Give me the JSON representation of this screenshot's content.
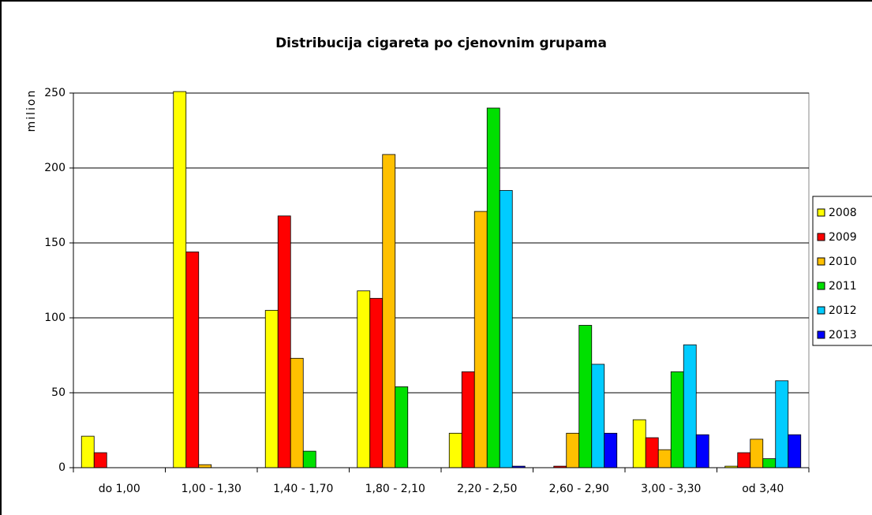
{
  "chart_data": {
    "type": "bar",
    "title": "Distribucija cigareta po cjenovnim grupama",
    "y_label": "milion",
    "categories": [
      "do 1,00",
      "1,00 - 1,30",
      "1,40 - 1,70",
      "1,80 - 2,10",
      "2,20 - 2,50",
      "2,60 - 2,90",
      "3,00 - 3,30",
      "od 3,40"
    ],
    "series": [
      {
        "name": "2008",
        "color": "#ffff00",
        "values": [
          21,
          251,
          105,
          118,
          23,
          0,
          32,
          1
        ]
      },
      {
        "name": "2009",
        "color": "#ff0000",
        "values": [
          10,
          144,
          168,
          113,
          64,
          1,
          20,
          10
        ]
      },
      {
        "name": "2010",
        "color": "#ffc000",
        "values": [
          0,
          2,
          73,
          209,
          171,
          23,
          12,
          19
        ]
      },
      {
        "name": "2011",
        "color": "#00e000",
        "values": [
          0,
          0,
          11,
          54,
          240,
          95,
          64,
          6
        ]
      },
      {
        "name": "2012",
        "color": "#00ccff",
        "values": [
          0,
          0,
          0,
          0,
          185,
          69,
          82,
          58
        ]
      },
      {
        "name": "2013",
        "color": "#0000ff",
        "values": [
          0,
          0,
          0,
          0,
          1,
          23,
          22,
          22
        ]
      }
    ],
    "ylim": [
      0,
      250
    ],
    "yticks": [
      0,
      50,
      100,
      150,
      200,
      250
    ],
    "grid": true,
    "legend": "right"
  }
}
